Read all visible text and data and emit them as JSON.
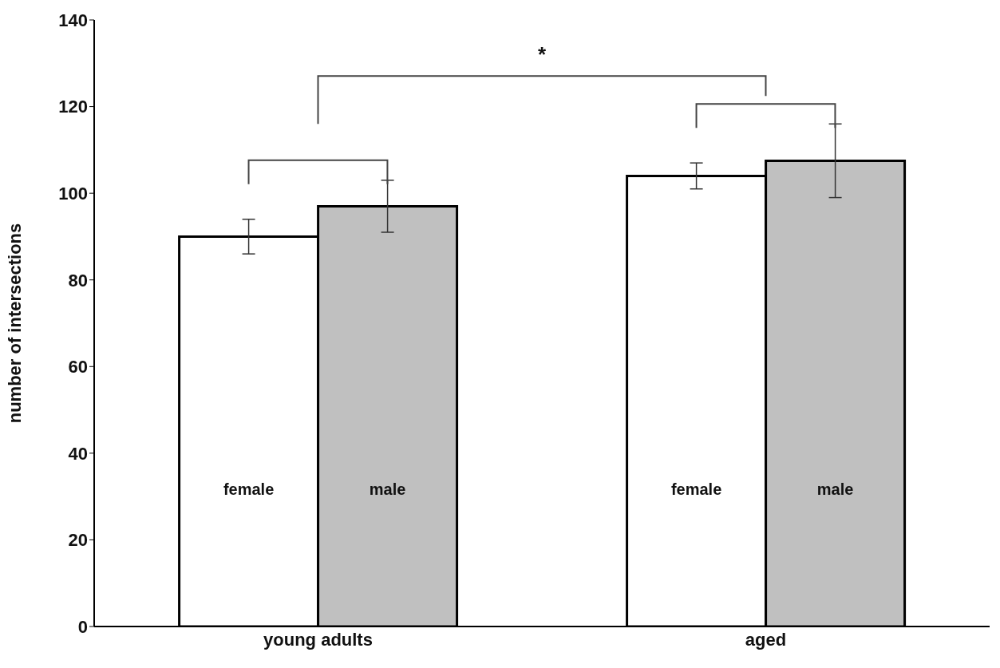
{
  "chart_data": {
    "type": "bar",
    "ylabel": "number of intersections",
    "categories": [
      "young adults",
      "aged"
    ],
    "series": [
      {
        "name": "female",
        "color": "#ffffff",
        "values": [
          90,
          104
        ],
        "errors": [
          4,
          3
        ]
      },
      {
        "name": "male",
        "color": "#c0c0c0",
        "values": [
          97,
          107.5
        ],
        "errors": [
          6,
          8.5
        ]
      }
    ],
    "ylim": [
      0,
      140
    ],
    "yticks": [
      0,
      20,
      40,
      60,
      80,
      100,
      120,
      140
    ],
    "annotations": [
      "*"
    ]
  }
}
